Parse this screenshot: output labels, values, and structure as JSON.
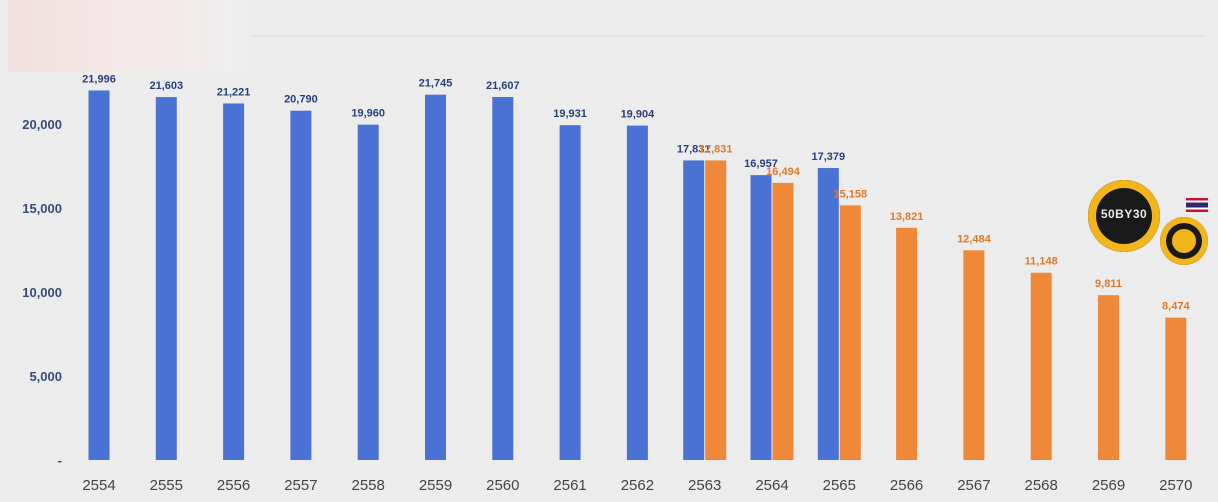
{
  "chart_data": {
    "type": "bar",
    "categories": [
      "2554",
      "2555",
      "2556",
      "2557",
      "2558",
      "2559",
      "2560",
      "2561",
      "2562",
      "2563",
      "2564",
      "2565",
      "2566",
      "2567",
      "2568",
      "2569",
      "2570"
    ],
    "series": [
      {
        "color": "#4a72d4",
        "values": [
          21996,
          21603,
          21221,
          20790,
          19960,
          21745,
          21607,
          19931,
          19904,
          17831,
          16957,
          17379,
          null,
          null,
          null,
          null,
          null
        ],
        "labels": [
          "21,996",
          "21,603",
          "21,221",
          "20,790",
          "19,960",
          "21,745",
          "21,607",
          "19,931",
          "19,904",
          "17,831",
          "16,957",
          "17,379",
          "",
          "",
          "",
          "",
          ""
        ]
      },
      {
        "color": "#f0883a",
        "values": [
          null,
          null,
          null,
          null,
          null,
          null,
          null,
          null,
          null,
          17831,
          16494,
          15158,
          13821,
          12484,
          11148,
          9811,
          8474
        ],
        "labels": [
          "",
          "",
          "",
          "",
          "",
          "",
          "",
          "",
          "",
          "17,831",
          "16,494",
          "15,158",
          "13,821",
          "12,484",
          "11,148",
          "9,811",
          "8,474"
        ]
      }
    ],
    "yticks": [
      {
        "value": 0,
        "label": "-"
      },
      {
        "value": 5000,
        "label": "5,000"
      },
      {
        "value": 10000,
        "label": "10,000"
      },
      {
        "value": 15000,
        "label": "15,000"
      },
      {
        "value": 20000,
        "label": "20,000"
      }
    ],
    "ylim": [
      0,
      22000
    ],
    "grid": false,
    "label_colors": {
      "blue": "#2a3f7a",
      "orange": "#e07a2a"
    }
  },
  "logo": {
    "main_text": "50BY30",
    "icon": "50by30-badge-icon"
  }
}
